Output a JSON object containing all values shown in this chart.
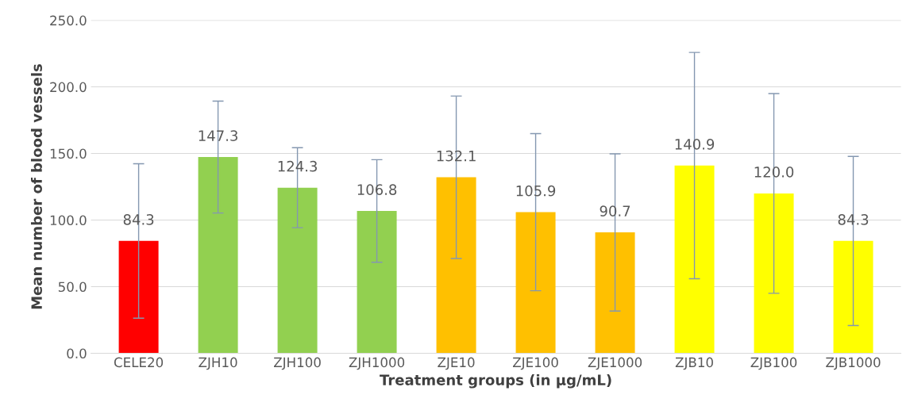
{
  "chart_data": {
    "type": "bar",
    "xlabel": "Treatment groups (in µg/mL)",
    "ylabel": "Mean number of blood vessels",
    "categories": [
      "CELE20",
      "ZJH10",
      "ZJH100",
      "ZJH1000",
      "ZJE10",
      "ZJE100",
      "ZJE1000",
      "ZJB10",
      "ZJB100",
      "ZJB1000"
    ],
    "values": [
      84.3,
      147.3,
      124.3,
      106.8,
      132.1,
      105.9,
      90.7,
      140.9,
      120.0,
      84.3
    ],
    "value_labels": [
      "84.3",
      "147.3",
      "124.3",
      "106.8",
      "132.1",
      "105.9",
      "90.7",
      "140.9",
      "120.0",
      "84.3"
    ],
    "errors": [
      58,
      42,
      30,
      38.5,
      61,
      59,
      59,
      85,
      75,
      63.5
    ],
    "colors": [
      "#ff0000",
      "#92d050",
      "#92d050",
      "#92d050",
      "#ffc000",
      "#ffc000",
      "#ffc000",
      "#ffff00",
      "#ffff00",
      "#ffff00"
    ],
    "ylim": [
      0,
      250
    ],
    "yticks": [
      {
        "value": 0,
        "label": "0.0"
      },
      {
        "value": 50,
        "label": "50.0"
      },
      {
        "value": 100,
        "label": "100.0"
      },
      {
        "value": 150,
        "label": "150.0"
      },
      {
        "value": 200,
        "label": "200.0"
      },
      {
        "value": 250,
        "label": "250.0"
      }
    ],
    "grid": "y"
  }
}
